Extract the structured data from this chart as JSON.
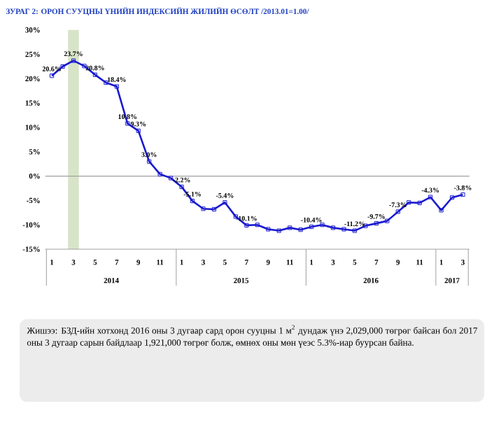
{
  "chart_data": {
    "type": "line",
    "title": "ЗУРАГ 2: ОРОН СУУЦНЫ ҮНИЙН ИНДЕКСИЙН ЖИЛИЙН ӨСӨЛТ /2013.01=1.00/",
    "categories": [
      "1",
      null,
      "3",
      null,
      "5",
      null,
      "7",
      null,
      "9",
      null,
      "11",
      null,
      "1",
      null,
      "3",
      null,
      "5",
      null,
      "7",
      null,
      "9",
      null,
      "11",
      null,
      "1",
      null,
      "3",
      null,
      "5",
      null,
      "7",
      null,
      "9",
      null,
      "11",
      null,
      "1",
      null,
      "3"
    ],
    "series": [
      {
        "color": "#1a1ad0",
        "marker": "square",
        "values": [
          20.6,
          22.5,
          23.7,
          22.6,
          20.8,
          19.2,
          18.4,
          10.8,
          9.3,
          3.0,
          0.4,
          -0.4,
          -2.2,
          -5.1,
          -6.7,
          -6.8,
          -5.4,
          -8.3,
          -10.1,
          -10.0,
          -10.9,
          -11.2,
          -10.6,
          -11.0,
          -10.4,
          -10.0,
          -10.6,
          -10.9,
          -11.2,
          -10.2,
          -9.7,
          -9.2,
          -7.3,
          -5.4,
          -5.5,
          -4.3,
          -7.0,
          -4.4,
          -3.8
        ],
        "value_labels": [
          "20.6%",
          null,
          "23.7%",
          null,
          "20.8%",
          null,
          "18.4%",
          "10.8%",
          "9.3%",
          "3.0%",
          null,
          null,
          "-2.2%",
          "-5.1%",
          null,
          null,
          "-5.4%",
          null,
          "-10.1%",
          null,
          null,
          null,
          null,
          null,
          "-10.4%",
          null,
          null,
          null,
          "-11.2%",
          null,
          "-9.7%",
          null,
          "-7.3%",
          null,
          null,
          "-4.3%",
          null,
          null,
          "-3.8%"
        ]
      }
    ],
    "ylim": [
      -15,
      30
    ],
    "yticks": [
      {
        "value": -15,
        "label": "-15%"
      },
      {
        "value": -10,
        "label": "-10%"
      },
      {
        "value": -5,
        "label": "-5%"
      },
      {
        "value": 0,
        "label": "0%"
      },
      {
        "value": 5,
        "label": "5%"
      },
      {
        "value": 10,
        "label": "10%"
      },
      {
        "value": 15,
        "label": "15%"
      },
      {
        "value": 20,
        "label": "20%"
      },
      {
        "value": 25,
        "label": "25%"
      },
      {
        "value": 30,
        "label": "30%"
      }
    ],
    "bands": [
      {
        "axis": "x",
        "from": "3",
        "to": "3",
        "color": "#d8e4c8"
      }
    ],
    "ref_lines": [
      {
        "axis": "y",
        "value": 0,
        "color": "#a0a0a0"
      }
    ],
    "grid": false,
    "annotations": [
      "2014",
      "2015",
      "2016",
      "2017",
      "Жишээ: БЗД-ийн хотхонд 2016 оны 3 дугаар сард орон сууцны 1 м$^{2}$ дундаж үнэ 2,029,000 төгрөг байсан бол 2017 оны 3 дугаар сарын байдлаар 1,921,000 төгрөг болж, өмнөх оны мөн үеэс 5.3%-иар буурсан байна."
    ]
  }
}
